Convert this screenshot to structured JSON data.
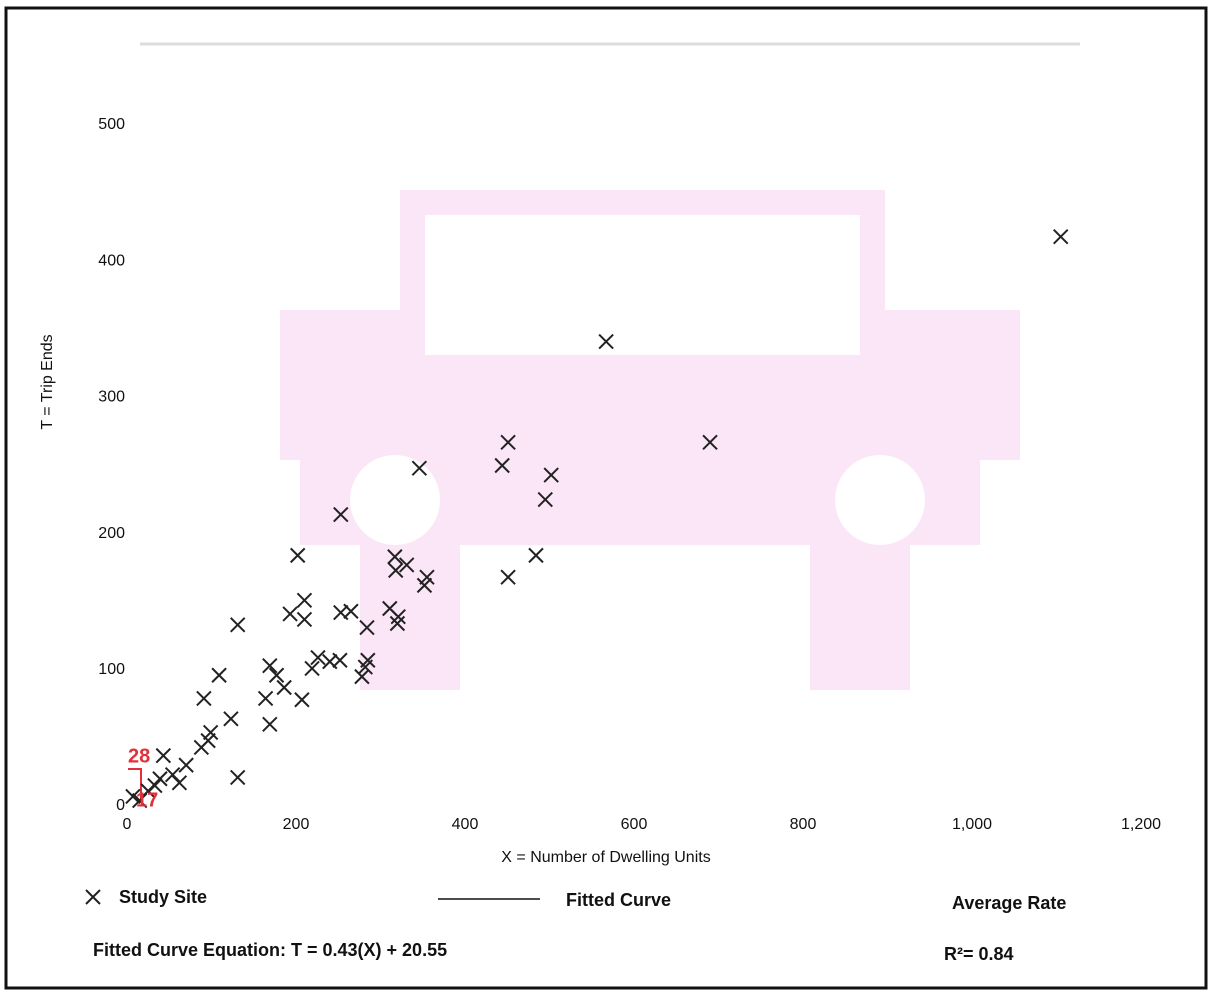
{
  "chart_data": {
    "type": "scatter",
    "x_label": "X = Number of Dwelling Units",
    "y_label": "T = Trip Ends",
    "xlim": [
      0,
      1200
    ],
    "xticks": [
      0,
      200,
      400,
      600,
      800,
      {
        "value": 1000,
        "label": "1,000"
      },
      {
        "value": 1200,
        "label": "1,200"
      }
    ],
    "ylim": [
      0,
      500
    ],
    "yticks": [
      0,
      100,
      200,
      300,
      400,
      500
    ],
    "series": [
      {
        "name": "Study Site",
        "color": "#222222",
        "x": [
          1105,
          567,
          690,
          451,
          444,
          502,
          346,
          495,
          253,
          202,
          484,
          317,
          331,
          318,
          355,
          352,
          451,
          210,
          193,
          210,
          253,
          265,
          311,
          321,
          320,
          284,
          131,
          226,
          240,
          252,
          219,
          285,
          282,
          278,
          169,
          177,
          109,
          186,
          164,
          207,
          91,
          169,
          123,
          99,
          96,
          88,
          70,
          54,
          62,
          131,
          43,
          39,
          33,
          25,
          7,
          15
        ],
        "values": [
          418,
          341,
          267,
          267,
          250,
          243,
          248,
          225,
          214,
          184,
          184,
          183,
          177,
          173,
          168,
          162,
          168,
          151,
          141,
          137,
          142,
          143,
          145,
          139,
          134,
          131,
          133,
          109,
          106,
          107,
          101,
          107,
          102,
          95,
          103,
          96,
          96,
          87,
          79,
          78,
          79,
          60,
          64,
          54,
          48,
          43,
          30,
          23,
          17,
          21,
          37,
          20,
          15,
          11,
          7,
          4
        ]
      }
    ],
    "legend": {
      "fitted_curve": "Fitted Curve",
      "average_rate": "Average Rate"
    },
    "annotations": [
      "28",
      "17"
    ],
    "equation": "Fitted Curve Equation: T = 0.43(X) + 20.55",
    "r_squared": "R²= 0.84"
  }
}
